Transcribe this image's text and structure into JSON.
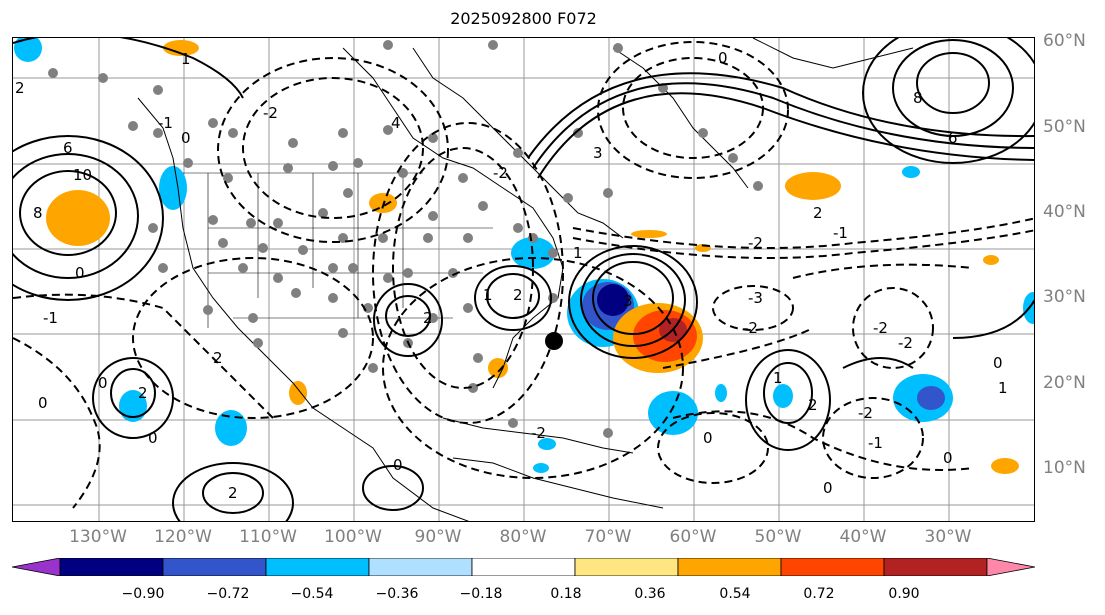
{
  "title": "2025092800 F072",
  "lat_labels": [
    "60°N",
    "50°N",
    "40°N",
    "30°N",
    "20°N",
    "10°N"
  ],
  "lon_labels": [
    "130°W",
    "120°W",
    "110°W",
    "100°W",
    "90°W",
    "80°W",
    "70°W",
    "60°W",
    "50°W",
    "40°W",
    "30°W"
  ],
  "colorbar": {
    "ticks": [
      "−0.90",
      "−0.72",
      "−0.54",
      "−0.36",
      "−0.18",
      "0.18",
      "0.36",
      "0.54",
      "0.72",
      "0.90"
    ],
    "colors": [
      "#9933cc",
      "#000080",
      "#3355cc",
      "#00bfff",
      "#b0e0ff",
      "#ffffff",
      "#ffe680",
      "#ffa500",
      "#ff4500",
      "#b22222",
      "#ff88aa"
    ]
  },
  "contour_labels": [
    "-1",
    "-2",
    "-3",
    "0",
    "1",
    "2",
    "3",
    "4",
    "6",
    "8",
    "10"
  ],
  "colors": {
    "grid": "#999999",
    "coast": "#000000",
    "station": "#808080",
    "center_dot": "#000000"
  }
}
